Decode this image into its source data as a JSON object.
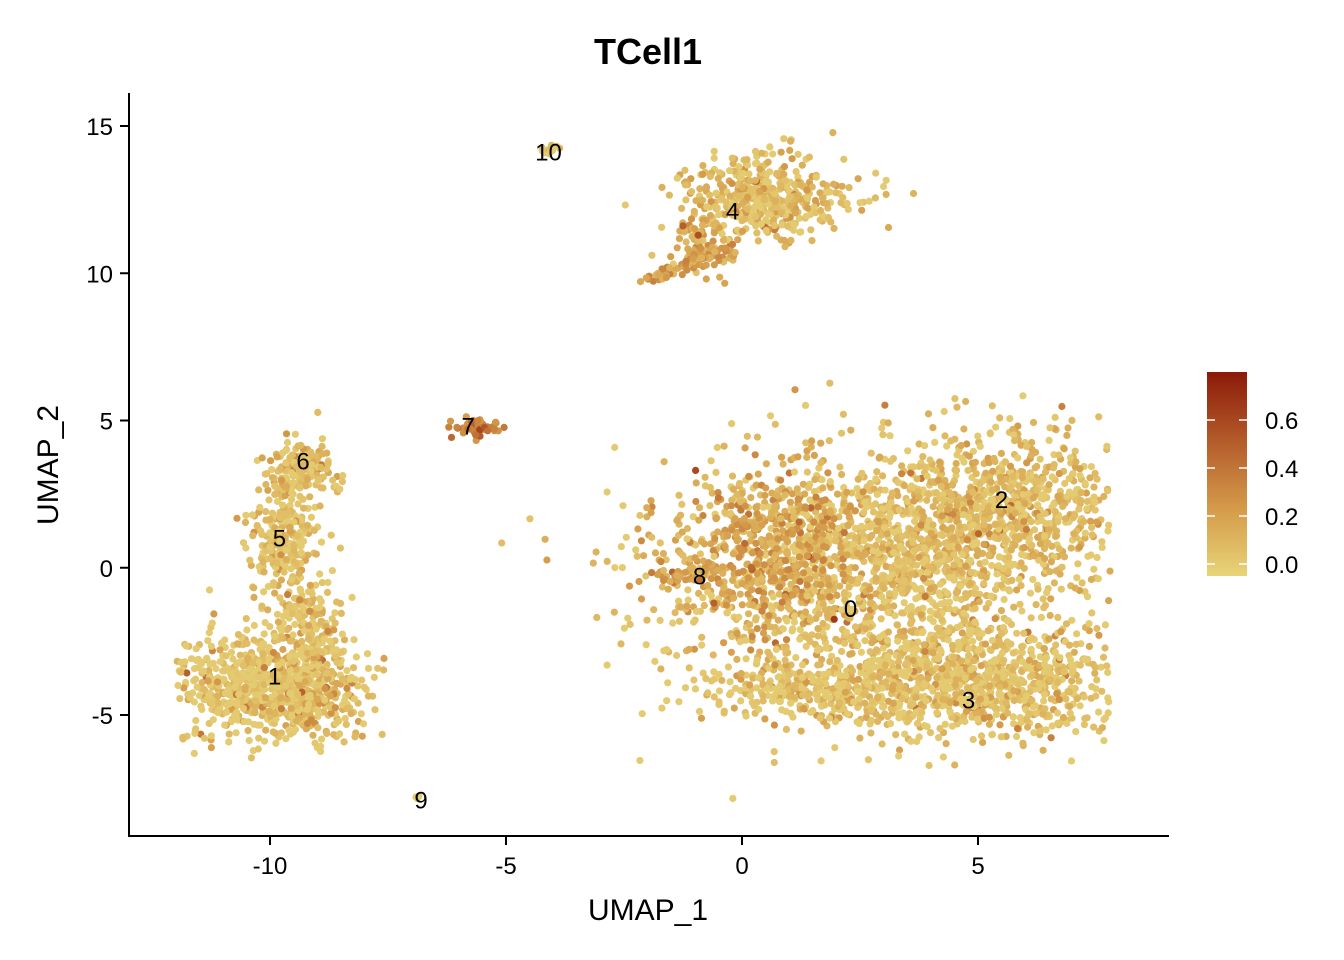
{
  "chart_data": {
    "type": "scatter",
    "title": "TCell1",
    "xlabel": "UMAP_1",
    "ylabel": "UMAP_2",
    "xlim": [
      -13.0,
      9.0
    ],
    "ylim": [
      -9.2,
      16.0
    ],
    "xticks": [
      -10,
      -5,
      0,
      5
    ],
    "yticks": [
      -5,
      0,
      5,
      10,
      15
    ],
    "xtick_labels": [
      "-10",
      "-5",
      "0",
      "5"
    ],
    "ytick_labels": [
      "-5",
      "0",
      "5",
      "10",
      "15"
    ],
    "grid": false,
    "legend": {
      "placement": "right",
      "type": "colorbar",
      "min": -0.05,
      "max": 0.8,
      "ticks": [
        0.0,
        0.2,
        0.4,
        0.6
      ],
      "tick_labels": [
        "0.0",
        "0.2",
        "0.4",
        "0.6"
      ],
      "colors": [
        "#E8D478",
        "#D49A4A",
        "#B35A2A",
        "#8B1A08"
      ]
    },
    "clusters": [
      {
        "label": "0",
        "x": 2.3,
        "y": -1.4
      },
      {
        "label": "1",
        "x": -9.9,
        "y": -3.7
      },
      {
        "label": "2",
        "x": 5.5,
        "y": 2.3
      },
      {
        "label": "3",
        "x": 4.8,
        "y": -4.5
      },
      {
        "label": "4",
        "x": -0.2,
        "y": 12.1
      },
      {
        "label": "5",
        "x": -9.8,
        "y": 1.0
      },
      {
        "label": "6",
        "x": -9.3,
        "y": 3.6
      },
      {
        "label": "7",
        "x": -5.8,
        "y": 4.8
      },
      {
        "label": "8",
        "x": -0.9,
        "y": -0.3
      },
      {
        "label": "9",
        "x": -6.8,
        "y": -7.9
      },
      {
        "label": "10",
        "x": -4.1,
        "y": 14.1
      }
    ]
  }
}
